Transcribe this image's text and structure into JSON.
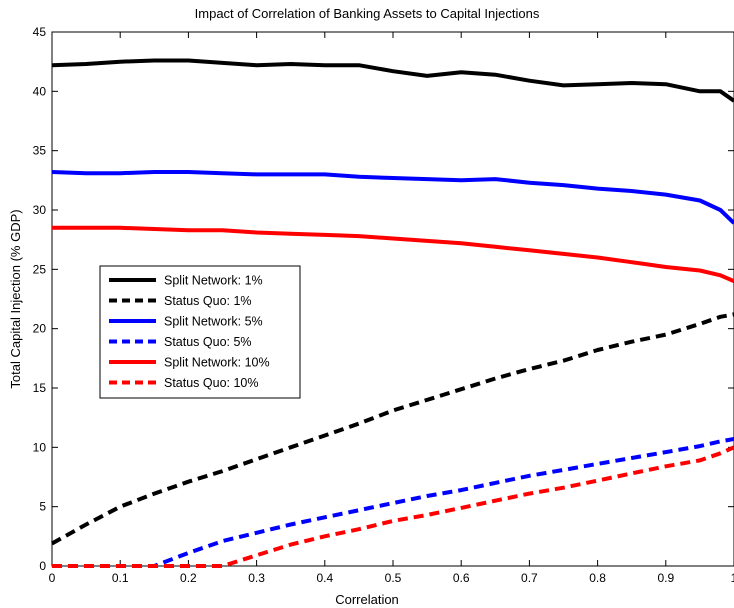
{
  "chart_data": {
    "type": "line",
    "title": "Impact of Correlation of Banking Assets to Capital Injections",
    "xlabel": "Correlation",
    "ylabel": "Total Capital Injection (% GDP)",
    "xlim": [
      0,
      1
    ],
    "ylim": [
      0,
      45
    ],
    "xticks": [
      0,
      0.1,
      0.2,
      0.3,
      0.4,
      0.5,
      0.6,
      0.7,
      0.8,
      0.9,
      1
    ],
    "xtick_labels": [
      "0",
      "0.1",
      "0.2",
      "0.3",
      "0.4",
      "0.5",
      "0.6",
      "0.7",
      "0.8",
      "0.9",
      "1"
    ],
    "yticks": [
      0,
      5,
      10,
      15,
      20,
      25,
      30,
      35,
      40,
      45
    ],
    "ytick_labels": [
      "0",
      "5",
      "10",
      "15",
      "20",
      "25",
      "30",
      "35",
      "40",
      "45"
    ],
    "grid": false,
    "legend_position": "left-middle",
    "x": [
      0,
      0.05,
      0.1,
      0.15,
      0.2,
      0.25,
      0.3,
      0.35,
      0.4,
      0.45,
      0.5,
      0.55,
      0.6,
      0.65,
      0.7,
      0.75,
      0.8,
      0.85,
      0.9,
      0.95,
      0.98,
      1
    ],
    "series": [
      {
        "name": "Split Network: 1%",
        "color": "#000000",
        "style": "solid",
        "values": [
          42.2,
          42.3,
          42.5,
          42.6,
          42.6,
          42.4,
          42.2,
          42.3,
          42.2,
          42.2,
          41.7,
          41.3,
          41.6,
          41.4,
          40.9,
          40.5,
          40.6,
          40.7,
          40.6,
          40.0,
          40.0,
          39.2
        ]
      },
      {
        "name": "Status Quo: 1%",
        "color": "#000000",
        "style": "dashed",
        "values": [
          1.9,
          3.5,
          5.0,
          6.1,
          7.1,
          8.0,
          9.0,
          10.0,
          11.0,
          12.0,
          13.1,
          14.0,
          14.9,
          15.8,
          16.6,
          17.3,
          18.2,
          18.9,
          19.5,
          20.4,
          21.0,
          21.2
        ]
      },
      {
        "name": "Split Network: 5%",
        "color": "#0000ff",
        "style": "solid",
        "values": [
          33.2,
          33.1,
          33.1,
          33.2,
          33.2,
          33.1,
          33.0,
          33.0,
          33.0,
          32.8,
          32.7,
          32.6,
          32.5,
          32.6,
          32.3,
          32.1,
          31.8,
          31.6,
          31.3,
          30.8,
          30.0,
          28.9
        ]
      },
      {
        "name": "Status Quo: 5%",
        "color": "#0000ff",
        "style": "dashed",
        "values": [
          0,
          0,
          0,
          0,
          1.1,
          2.1,
          2.8,
          3.5,
          4.1,
          4.7,
          5.3,
          5.9,
          6.4,
          7.0,
          7.6,
          8.1,
          8.6,
          9.1,
          9.6,
          10.1,
          10.5,
          10.7
        ]
      },
      {
        "name": "Split Network: 10%",
        "color": "#ff0000",
        "style": "solid",
        "values": [
          28.5,
          28.5,
          28.5,
          28.4,
          28.3,
          28.3,
          28.1,
          28.0,
          27.9,
          27.8,
          27.6,
          27.4,
          27.2,
          26.9,
          26.6,
          26.3,
          26.0,
          25.6,
          25.2,
          24.9,
          24.5,
          24.0
        ]
      },
      {
        "name": "Status Quo: 10%",
        "color": "#ff0000",
        "style": "dashed",
        "values": [
          0,
          0,
          0,
          0,
          0,
          0,
          0.9,
          1.8,
          2.5,
          3.1,
          3.8,
          4.3,
          4.9,
          5.5,
          6.1,
          6.6,
          7.2,
          7.8,
          8.4,
          8.9,
          9.5,
          10.0
        ]
      }
    ]
  }
}
